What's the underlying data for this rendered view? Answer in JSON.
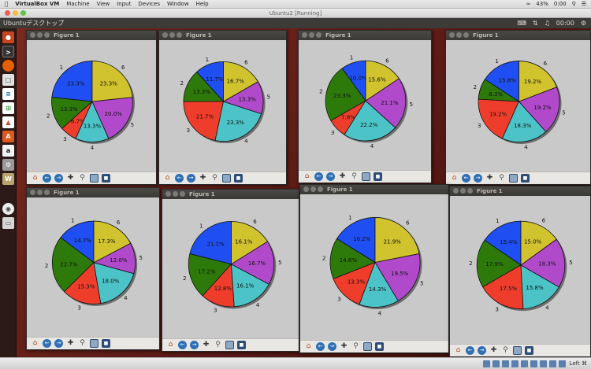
{
  "menubar": {
    "app": "VirtualBox VM",
    "items": [
      "Machine",
      "View",
      "Input",
      "Devices",
      "Window",
      "Help"
    ],
    "battery": "43%",
    "clock": "0:00"
  },
  "vm_window": {
    "title": "Ubuntu2 [Running]"
  },
  "ubuntu_panel": {
    "title": "Ubuntuデスクトップ",
    "clock": "00:00"
  },
  "status_bar": {
    "host_key": "Left ⌘"
  },
  "colors": {
    "blue": "#1f4ff2",
    "yellow": "#d1c32e",
    "purple": "#b04acb",
    "cyan": "#4cc4c7",
    "red": "#ef3d2c",
    "green": "#2d7a0b"
  },
  "launcher": {
    "icons": [
      "dash-icon",
      "terminal-icon",
      "firefox-icon",
      "files-icon",
      "libreoffice-writer-icon",
      "libreoffice-calc-icon",
      "libreoffice-impress-icon",
      "software-center-icon",
      "amazon-icon",
      "settings-icon",
      "workspace-icon",
      "dvd-icon",
      "trash-icon"
    ]
  },
  "figures": [
    {
      "title": "Figure 1",
      "chart_data": {
        "type": "pie",
        "labels": [
          "1",
          "2",
          "3",
          "4",
          "5",
          "6"
        ],
        "values": [
          23.3,
          13.3,
          6.7,
          13.3,
          20.0,
          23.3
        ],
        "pct": [
          "23.3%",
          "13.3%",
          "6.7%",
          "13.3%",
          "20.0%",
          "23.3%"
        ]
      }
    },
    {
      "title": "Figure 1",
      "chart_data": {
        "type": "pie",
        "labels": [
          "1",
          "2",
          "3",
          "4",
          "5",
          "6"
        ],
        "values": [
          11.7,
          13.3,
          21.7,
          23.3,
          13.3,
          16.7
        ],
        "pct": [
          "11.7%",
          "13.3%",
          "21.7%",
          "23.3%",
          "13.3%",
          "16.7%"
        ]
      }
    },
    {
      "title": "Figure 1",
      "chart_data": {
        "type": "pie",
        "labels": [
          "1",
          "2",
          "3",
          "4",
          "5",
          "6"
        ],
        "values": [
          10.0,
          23.3,
          7.8,
          22.2,
          21.1,
          15.6
        ],
        "pct": [
          "10.0%",
          "23.3%",
          "7.8%",
          "22.2%",
          "21.1%",
          "15.6%"
        ]
      }
    },
    {
      "title": "Figure 1",
      "chart_data": {
        "type": "pie",
        "labels": [
          "1",
          "2",
          "3",
          "4",
          "5",
          "6"
        ],
        "values": [
          15.8,
          8.3,
          19.2,
          18.3,
          19.2,
          19.2
        ],
        "pct": [
          "15.8%",
          "8.3%",
          "19.2%",
          "18.3%",
          "19.2%",
          "19.2%"
        ]
      }
    },
    {
      "title": "Figure 1",
      "chart_data": {
        "type": "pie",
        "labels": [
          "1",
          "2",
          "3",
          "4",
          "5",
          "6"
        ],
        "values": [
          14.7,
          22.7,
          15.3,
          18.0,
          12.0,
          17.3
        ],
        "pct": [
          "14.7%",
          "22.7%",
          "15.3%",
          "18.0%",
          "12.0%",
          "17.3%"
        ]
      }
    },
    {
      "title": "Figure 1",
      "chart_data": {
        "type": "pie",
        "labels": [
          "1",
          "2",
          "3",
          "4",
          "5",
          "6"
        ],
        "values": [
          21.1,
          17.2,
          12.8,
          16.1,
          16.7,
          16.1
        ],
        "pct": [
          "21.1%",
          "17.2%",
          "12.8%",
          "16.1%",
          "16.7%",
          "16.1%"
        ]
      }
    },
    {
      "title": "Figure 1",
      "chart_data": {
        "type": "pie",
        "labels": [
          "1",
          "2",
          "3",
          "4",
          "5",
          "6"
        ],
        "values": [
          16.2,
          14.8,
          13.3,
          14.3,
          19.5,
          21.9
        ],
        "pct": [
          "16.2%",
          "14.8%",
          "13.3%",
          "14.3%",
          "19.5%",
          "21.9%"
        ]
      }
    },
    {
      "title": "Figure 1",
      "chart_data": {
        "type": "pie",
        "labels": [
          "1",
          "2",
          "3",
          "4",
          "5",
          "6"
        ],
        "values": [
          15.4,
          17.9,
          17.5,
          15.8,
          18.3,
          15.0
        ],
        "pct": [
          "15.4%",
          "17.9%",
          "17.5%",
          "15.8%",
          "18.3%",
          "15.0%"
        ]
      }
    }
  ]
}
